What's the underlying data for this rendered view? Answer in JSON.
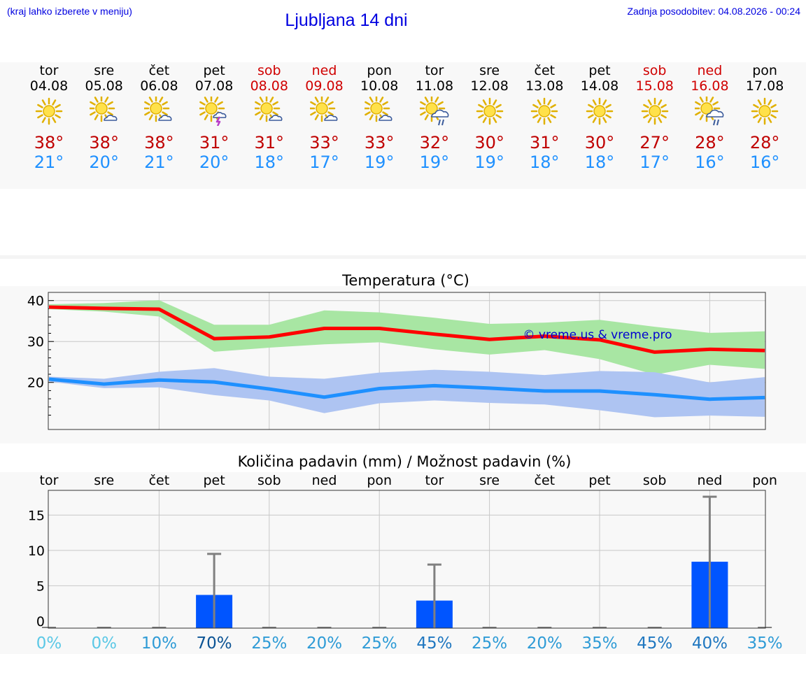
{
  "header": {
    "hint": "(kraj lahko izberete v meniju)",
    "title": "Ljubljana 14 dni",
    "updated": "Zadnja posodobitev: 04.08.2026 - 00:24"
  },
  "colors": {
    "max": "#c00000",
    "min": "#1e90ff",
    "weekend": "#d00000",
    "tmax_line": "#ff0000",
    "tmin_line": "#1e90ff",
    "tmax_band": "#a8e6a3",
    "tmin_band": "#aec4f2",
    "bar": "#0055ff"
  },
  "days": [
    {
      "name": "tor",
      "date": "04.08",
      "icon": "sun",
      "max": "38°",
      "min": "21°",
      "weekend": false
    },
    {
      "name": "sre",
      "date": "05.08",
      "icon": "sun-cloud",
      "max": "38°",
      "min": "20°",
      "weekend": false
    },
    {
      "name": "čet",
      "date": "06.08",
      "icon": "sun-cloud",
      "max": "38°",
      "min": "21°",
      "weekend": false
    },
    {
      "name": "pet",
      "date": "07.08",
      "icon": "sun-cloud-thunder",
      "max": "31°",
      "min": "20°",
      "weekend": false
    },
    {
      "name": "sob",
      "date": "08.08",
      "icon": "sun-cloud",
      "max": "31°",
      "min": "18°",
      "weekend": true
    },
    {
      "name": "ned",
      "date": "09.08",
      "icon": "sun-cloud",
      "max": "33°",
      "min": "17°",
      "weekend": true
    },
    {
      "name": "pon",
      "date": "10.08",
      "icon": "sun-cloud",
      "max": "33°",
      "min": "19°",
      "weekend": false
    },
    {
      "name": "tor",
      "date": "11.08",
      "icon": "sun-rain",
      "max": "32°",
      "min": "19°",
      "weekend": false
    },
    {
      "name": "sre",
      "date": "12.08",
      "icon": "sun",
      "max": "30°",
      "min": "19°",
      "weekend": false
    },
    {
      "name": "čet",
      "date": "13.08",
      "icon": "sun",
      "max": "31°",
      "min": "18°",
      "weekend": false
    },
    {
      "name": "pet",
      "date": "14.08",
      "icon": "sun",
      "max": "30°",
      "min": "18°",
      "weekend": false
    },
    {
      "name": "sob",
      "date": "15.08",
      "icon": "sun",
      "max": "27°",
      "min": "17°",
      "weekend": true
    },
    {
      "name": "ned",
      "date": "16.08",
      "icon": "sun-rain",
      "max": "28°",
      "min": "16°",
      "weekend": true
    },
    {
      "name": "pon",
      "date": "17.08",
      "icon": "sun",
      "max": "28°",
      "min": "16°",
      "weekend": false
    }
  ],
  "chart_data": [
    {
      "type": "line",
      "title": "Temperatura (°C)",
      "watermark": "© vreme.us & vreme.pro",
      "categories": [
        "04.08",
        "05.08",
        "06.08",
        "07.08",
        "08.08",
        "09.08",
        "10.08",
        "11.08",
        "12.08",
        "13.08",
        "14.08",
        "15.08",
        "16.08",
        "17.08"
      ],
      "ylim": [
        8.5,
        42
      ],
      "yticks": [
        20,
        30,
        40
      ],
      "grid": true,
      "series": [
        {
          "id": "tmax",
          "values": [
            38.4,
            38.1,
            37.9,
            30.7,
            31.1,
            33.2,
            33.2,
            31.8,
            30.5,
            31.3,
            30.4,
            27.4,
            28.1,
            27.8
          ],
          "band_high": [
            39.1,
            39.4,
            40.1,
            34.1,
            34.1,
            37.6,
            37.1,
            35.8,
            34.3,
            34.6,
            35.3,
            33.6,
            32.1,
            32.5
          ],
          "band_low": [
            37.9,
            37.3,
            36.1,
            27.5,
            28.5,
            29.3,
            29.8,
            28.1,
            26.8,
            27.9,
            25.7,
            21.9,
            24.3,
            23.3
          ]
        },
        {
          "id": "tmin",
          "values": [
            20.8,
            19.6,
            20.6,
            20.1,
            18.4,
            16.4,
            18.5,
            19.2,
            18.6,
            17.9,
            17.9,
            17.0,
            15.9,
            16.3
          ],
          "band_high": [
            21.4,
            20.9,
            22.6,
            23.5,
            21.4,
            20.9,
            22.4,
            23.1,
            22.6,
            21.8,
            22.8,
            22.5,
            20.0,
            21.3
          ],
          "band_low": [
            20.2,
            18.6,
            18.8,
            16.9,
            15.6,
            12.5,
            14.9,
            15.6,
            15.0,
            14.6,
            13.2,
            11.5,
            11.9,
            11.6
          ]
        }
      ]
    },
    {
      "type": "bar",
      "title": "Količina padavin (mm) / Možnost padavin (%)",
      "categories": [
        "tor",
        "sre",
        "čet",
        "pet",
        "sob",
        "ned",
        "pon",
        "tor",
        "sre",
        "čet",
        "pet",
        "sob",
        "ned",
        "pon"
      ],
      "ylim": [
        -1,
        18.5
      ],
      "yticks": [
        0,
        5,
        10,
        15
      ],
      "grid": true,
      "values": [
        0,
        0,
        0,
        3.7,
        0,
        0,
        0,
        2.9,
        0,
        0,
        0,
        0,
        8.4,
        0
      ],
      "error_high": [
        0,
        0,
        0,
        9.5,
        0,
        0,
        0,
        8.0,
        0,
        0,
        0,
        0,
        17.6,
        0
      ],
      "probability": [
        "0%",
        "0%",
        "10%",
        "70%",
        "25%",
        "20%",
        "25%",
        "45%",
        "25%",
        "20%",
        "35%",
        "45%",
        "40%",
        "35%"
      ],
      "probability_colors": [
        "#5bc8e6",
        "#5bc8e6",
        "#2e9bd6",
        "#0b5394",
        "#2e9bd6",
        "#2e9bd6",
        "#2e9bd6",
        "#1f77c0",
        "#2e9bd6",
        "#2e9bd6",
        "#2e9bd6",
        "#1f77c0",
        "#1f77c0",
        "#2e9bd6"
      ]
    }
  ]
}
